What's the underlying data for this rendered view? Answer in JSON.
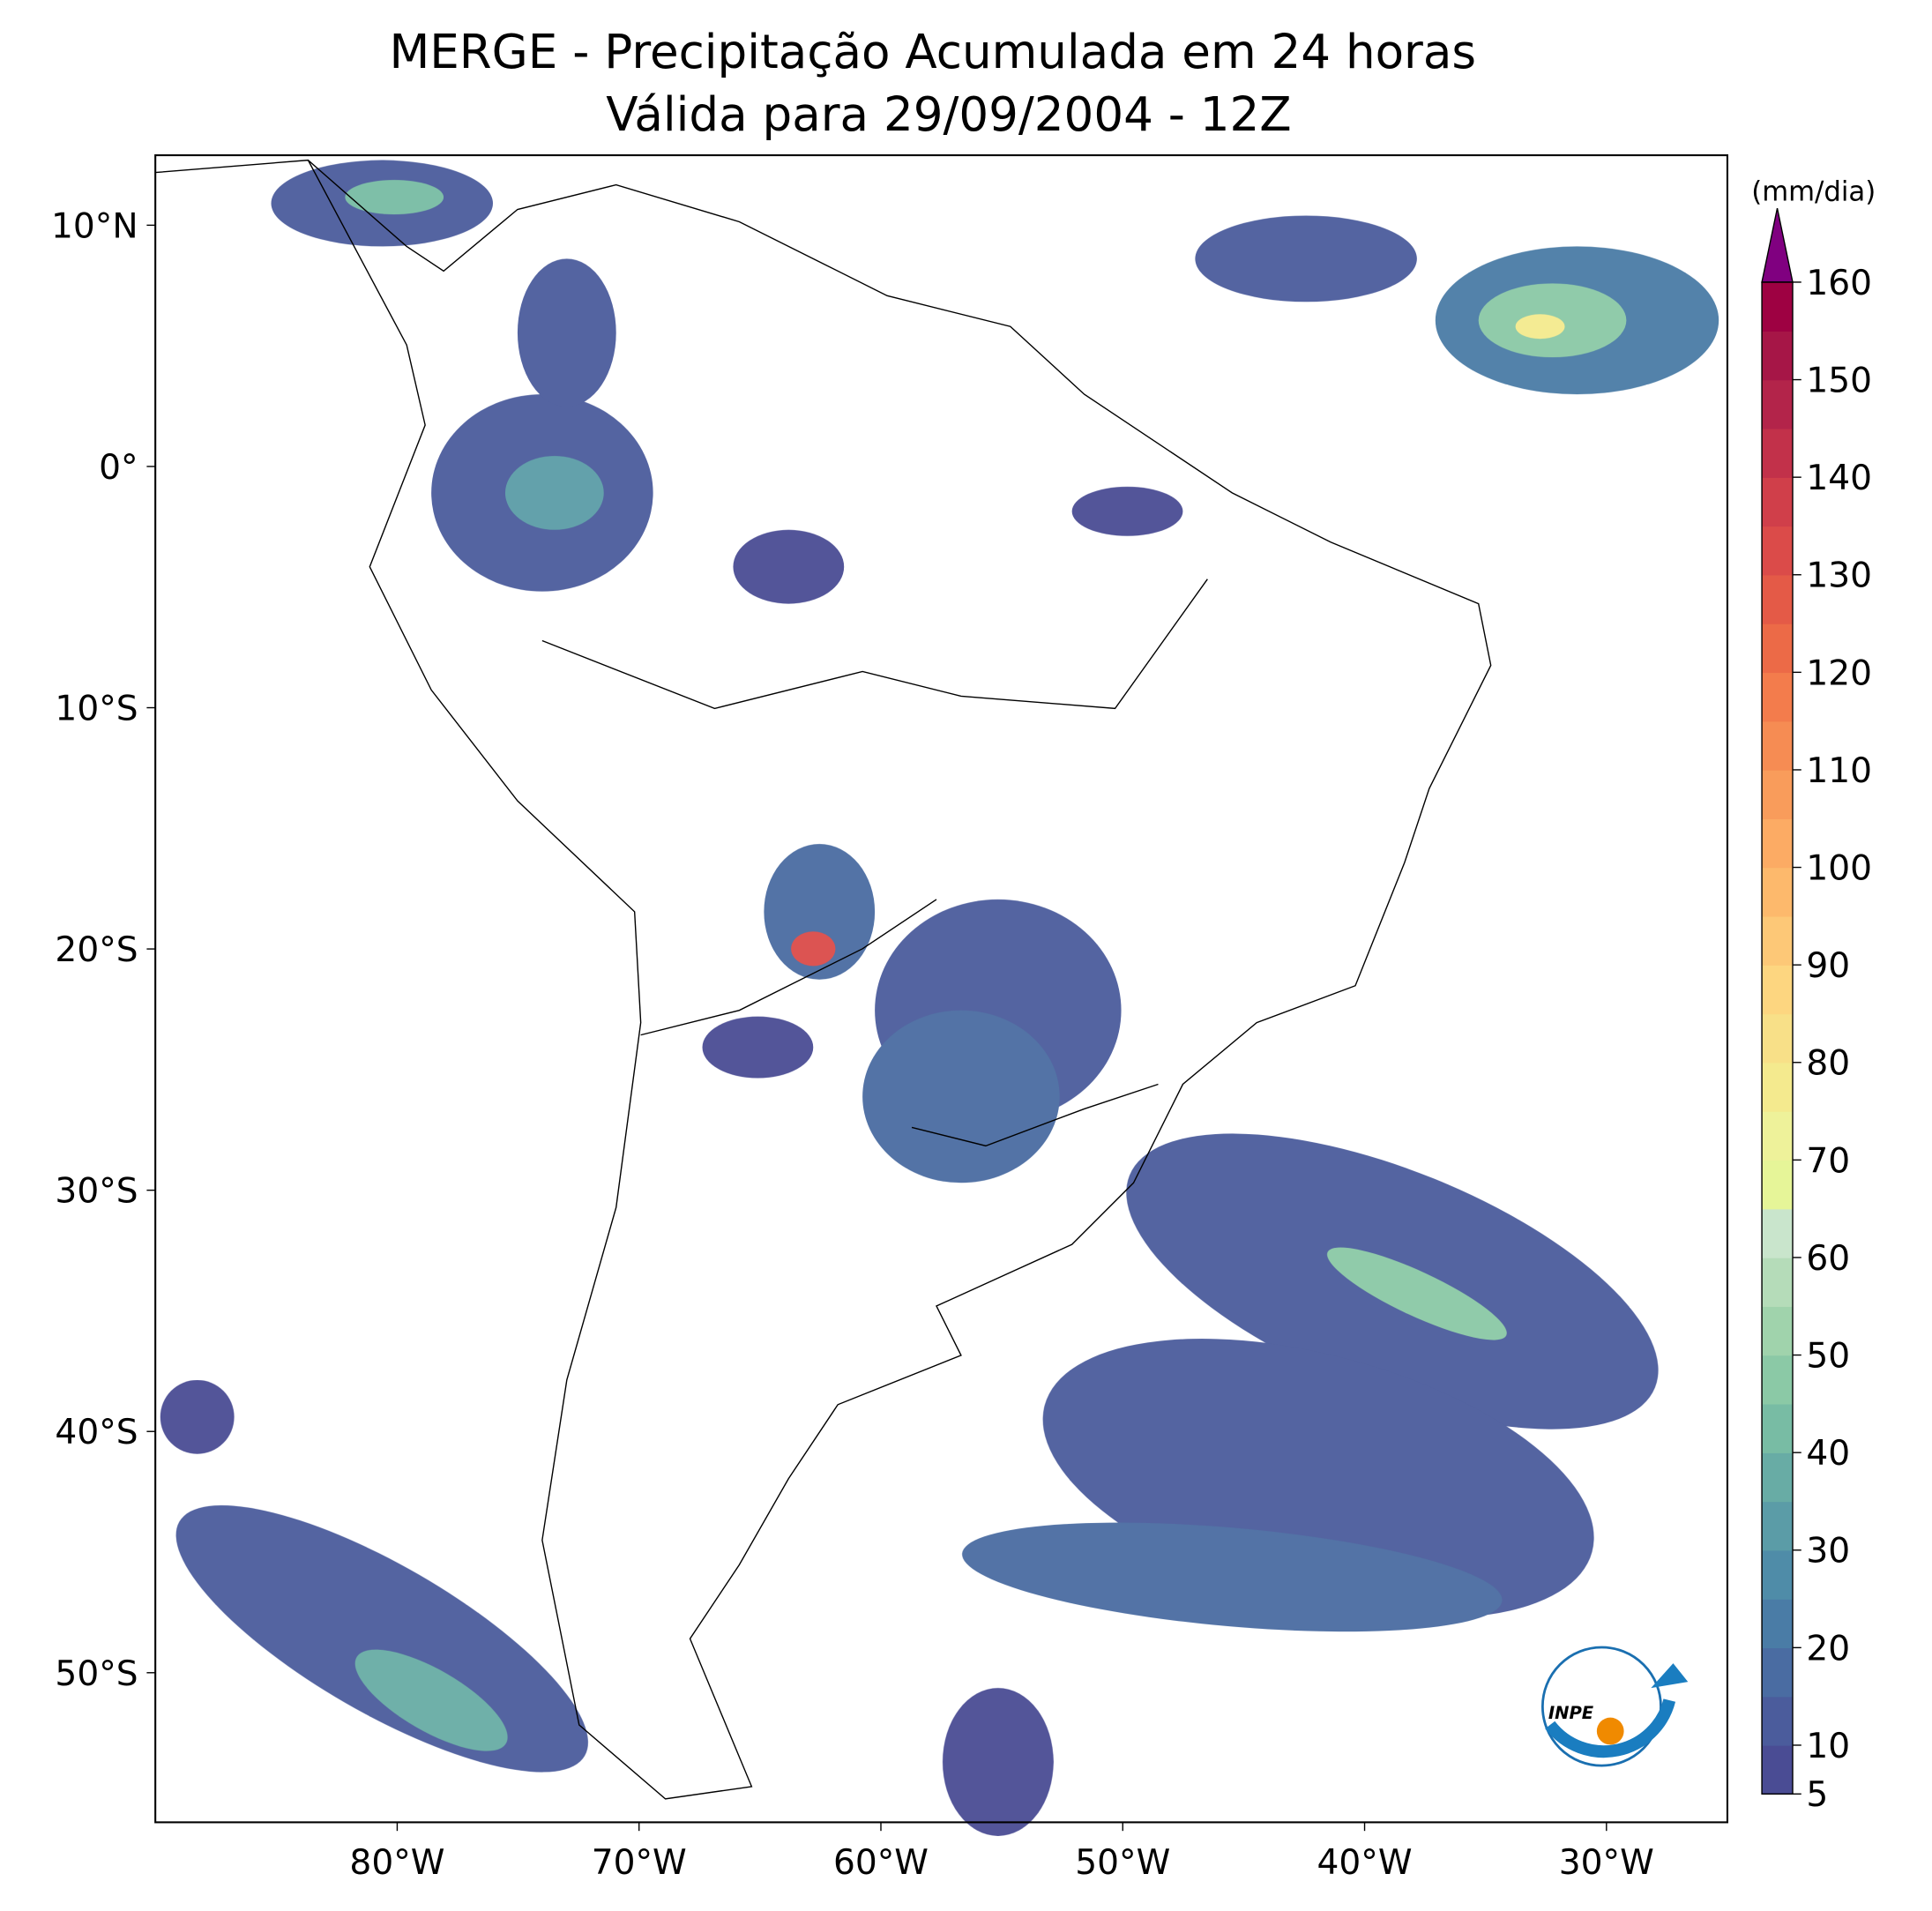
{
  "chart_data": {
    "type": "map",
    "title": "MERGE - Precipitação Acumulada em 24 horas",
    "subtitle": "Válida para 29/09/2004 - 12Z",
    "xlim": [
      -90,
      -25
    ],
    "ylim": [
      -56.2,
      12.9
    ],
    "xticks": [
      {
        "value": -80,
        "label": "80°W"
      },
      {
        "value": -70,
        "label": "70°W"
      },
      {
        "value": -60,
        "label": "60°W"
      },
      {
        "value": -50,
        "label": "50°W"
      },
      {
        "value": -40,
        "label": "40°W"
      },
      {
        "value": -30,
        "label": "30°W"
      }
    ],
    "yticks": [
      {
        "value": 10,
        "label": "10°N"
      },
      {
        "value": 0,
        "label": "0°"
      },
      {
        "value": -10,
        "label": "10°S"
      },
      {
        "value": -20,
        "label": "20°S"
      },
      {
        "value": -30,
        "label": "30°S"
      },
      {
        "value": -40,
        "label": "40°S"
      },
      {
        "value": -50,
        "label": "50°S"
      }
    ],
    "colorbar": {
      "unit": "(mm/dia)",
      "levels": [
        5,
        10,
        15,
        20,
        25,
        30,
        35,
        40,
        45,
        50,
        55,
        60,
        65,
        70,
        75,
        80,
        85,
        90,
        95,
        100,
        105,
        110,
        115,
        120,
        125,
        130,
        135,
        140,
        145,
        150,
        155,
        160
      ],
      "colors": [
        "#4a4c94",
        "#4b5c9c",
        "#4a6ca2",
        "#4a7ca6",
        "#4f8ca8",
        "#5b9ca7",
        "#68aca5",
        "#78bca4",
        "#8bc9a6",
        "#a0d3ac",
        "#b5dcb9",
        "#c9e5cc",
        "#e6f598",
        "#eef29a",
        "#f4ea8e",
        "#f8e088",
        "#fdd680",
        "#fdc877",
        "#fdb96c",
        "#fcab64",
        "#f99c5b",
        "#f68c53",
        "#f37c4c",
        "#ec6a47",
        "#e45a47",
        "#db4b49",
        "#d03f4a",
        "#c2314a",
        "#b3244a",
        "#a61647",
        "#9e0142"
      ],
      "extend_color": "#800080",
      "ticks": [
        5,
        10,
        20,
        30,
        40,
        50,
        60,
        70,
        80,
        90,
        100,
        110,
        120,
        130,
        140,
        150,
        160
      ]
    },
    "logo_text": "INPE"
  }
}
